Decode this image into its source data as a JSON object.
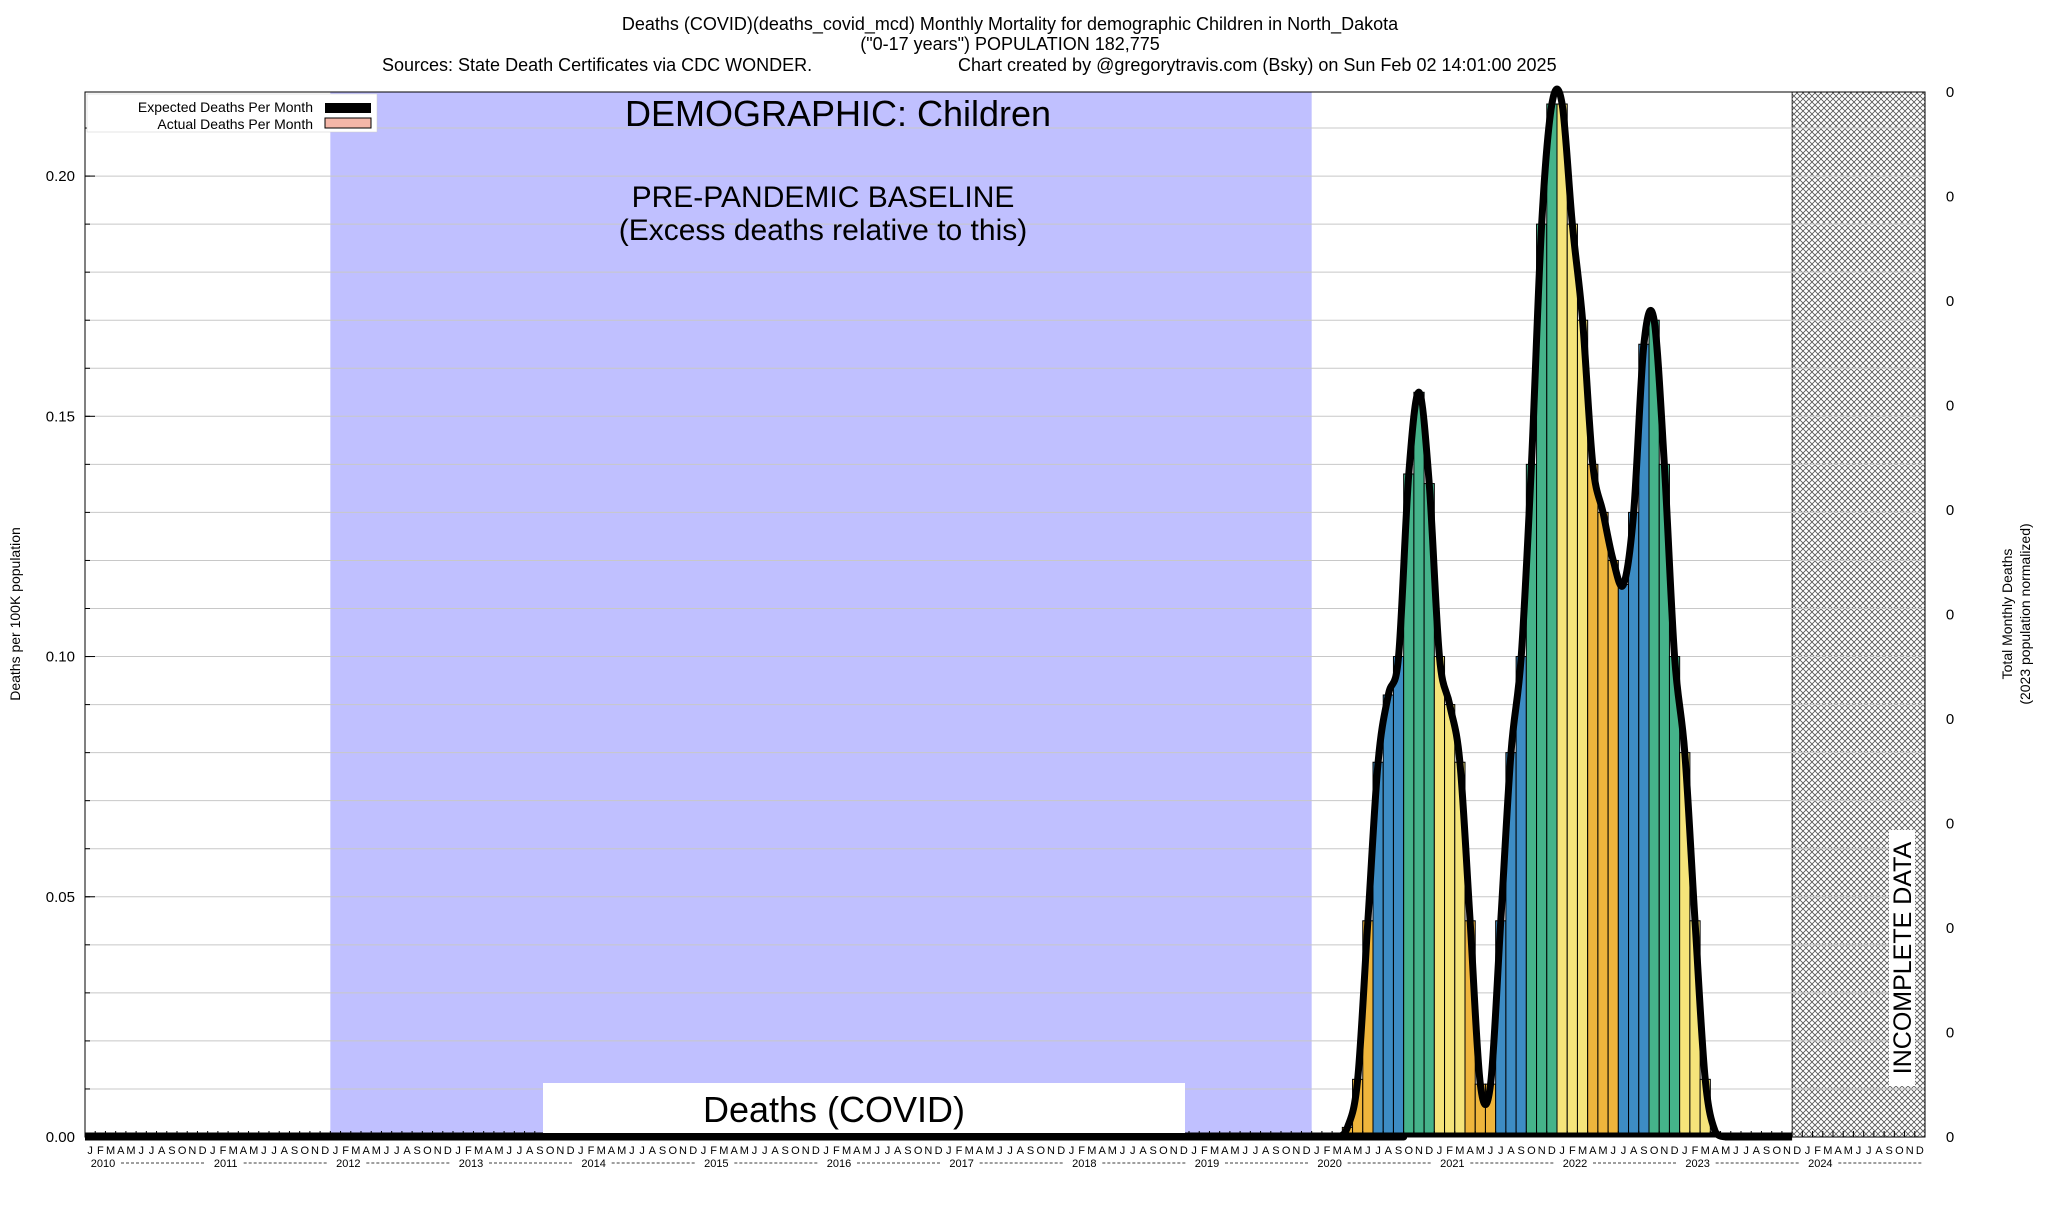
{
  "title": {
    "line1": "Deaths (COVID)(deaths_covid_mcd) Monthly Mortality for demographic Children in North_Dakota",
    "line2": "(\"0-17 years\") POPULATION 182,775",
    "line3a": "Sources: State Death Certificates via CDC WONDER.",
    "line3b": "Chart created by @gregorytravis.com (Bsky) on Sun Feb 02 14:01:00 2025"
  },
  "legend": {
    "expected": "Expected Deaths Per Month",
    "actual": "Actual Deaths Per Month"
  },
  "annotations": {
    "demographic": "DEMOGRAPHIC: Children",
    "baseline_line1": "PRE-PANDEMIC BASELINE",
    "baseline_line2": "(Excess deaths relative to this)",
    "cause": "Deaths (COVID)",
    "incomplete": "INCOMPLETE DATA"
  },
  "colors": {
    "baseline_fill": "#c0c0ff",
    "curve": "#000000",
    "expected_swatch": "#000000",
    "actual_swatch": "#f4b6a8",
    "bar_yellow": "#f5e47a",
    "bar_orange": "#eeb53c",
    "bar_blue": "#3d8cc4",
    "bar_green": "#45b38a",
    "grid": "#c8c8c8"
  },
  "chart_data": {
    "type": "area",
    "ylabel": "Deaths per 100K population",
    "ylabel_right_line1": "Total Monthly Deaths",
    "ylabel_right_line2": "(2023 population normalized)",
    "ylim": [
      0,
      0.2175
    ],
    "yticks": [
      0.0,
      0.05,
      0.1,
      0.15,
      0.2
    ],
    "ytick_labels": [
      "0.00",
      "0.05",
      "0.10",
      "0.15",
      "0.20"
    ],
    "right_tick_labels": [
      "0",
      "0",
      "0",
      "0",
      "0",
      "0",
      "0",
      "0",
      "0",
      "0",
      "0"
    ],
    "month_letters": [
      "J",
      "F",
      "M",
      "A",
      "M",
      "J",
      "J",
      "A",
      "S",
      "O",
      "N",
      "D"
    ],
    "years": [
      "2010",
      "2011",
      "2012",
      "2013",
      "2014",
      "2015",
      "2016",
      "2017",
      "2018",
      "2019",
      "2020",
      "2021",
      "2022",
      "2023",
      "2024"
    ],
    "x_start": "2010-01",
    "x_end": "2024-12",
    "baseline_period": [
      "2012-01",
      "2019-12"
    ],
    "incomplete_period": [
      "2024-01",
      "2024-12"
    ],
    "grid": true,
    "legend_position": "top-left",
    "series": [
      {
        "name": "Actual Deaths Per Month",
        "months": [
          "2020-01",
          "2020-02",
          "2020-03",
          "2020-04",
          "2020-05",
          "2020-06",
          "2020-07",
          "2020-08",
          "2020-09",
          "2020-10",
          "2020-11",
          "2020-12",
          "2021-01",
          "2021-02",
          "2021-03",
          "2021-04",
          "2021-05",
          "2021-06",
          "2021-07",
          "2021-08",
          "2021-09",
          "2021-10",
          "2021-11",
          "2021-12",
          "2022-01",
          "2022-02",
          "2022-03",
          "2022-04",
          "2022-05",
          "2022-06",
          "2022-07",
          "2022-08",
          "2022-09",
          "2022-10",
          "2022-11",
          "2022-12",
          "2023-01",
          "2023-02",
          "2023-03",
          "2023-04",
          "2023-05",
          "2023-06"
        ],
        "values": [
          0,
          0,
          0,
          0.002,
          0.012,
          0.045,
          0.078,
          0.092,
          0.1,
          0.138,
          0.155,
          0.136,
          0.1,
          0.09,
          0.078,
          0.045,
          0.011,
          0.011,
          0.045,
          0.08,
          0.1,
          0.14,
          0.19,
          0.215,
          0.215,
          0.19,
          0.17,
          0.14,
          0.13,
          0.12,
          0.115,
          0.13,
          0.165,
          0.17,
          0.14,
          0.1,
          0.08,
          0.045,
          0.012,
          0.001,
          0,
          0
        ]
      },
      {
        "name": "Expected Deaths Per Month",
        "constant": 0.0
      }
    ]
  }
}
